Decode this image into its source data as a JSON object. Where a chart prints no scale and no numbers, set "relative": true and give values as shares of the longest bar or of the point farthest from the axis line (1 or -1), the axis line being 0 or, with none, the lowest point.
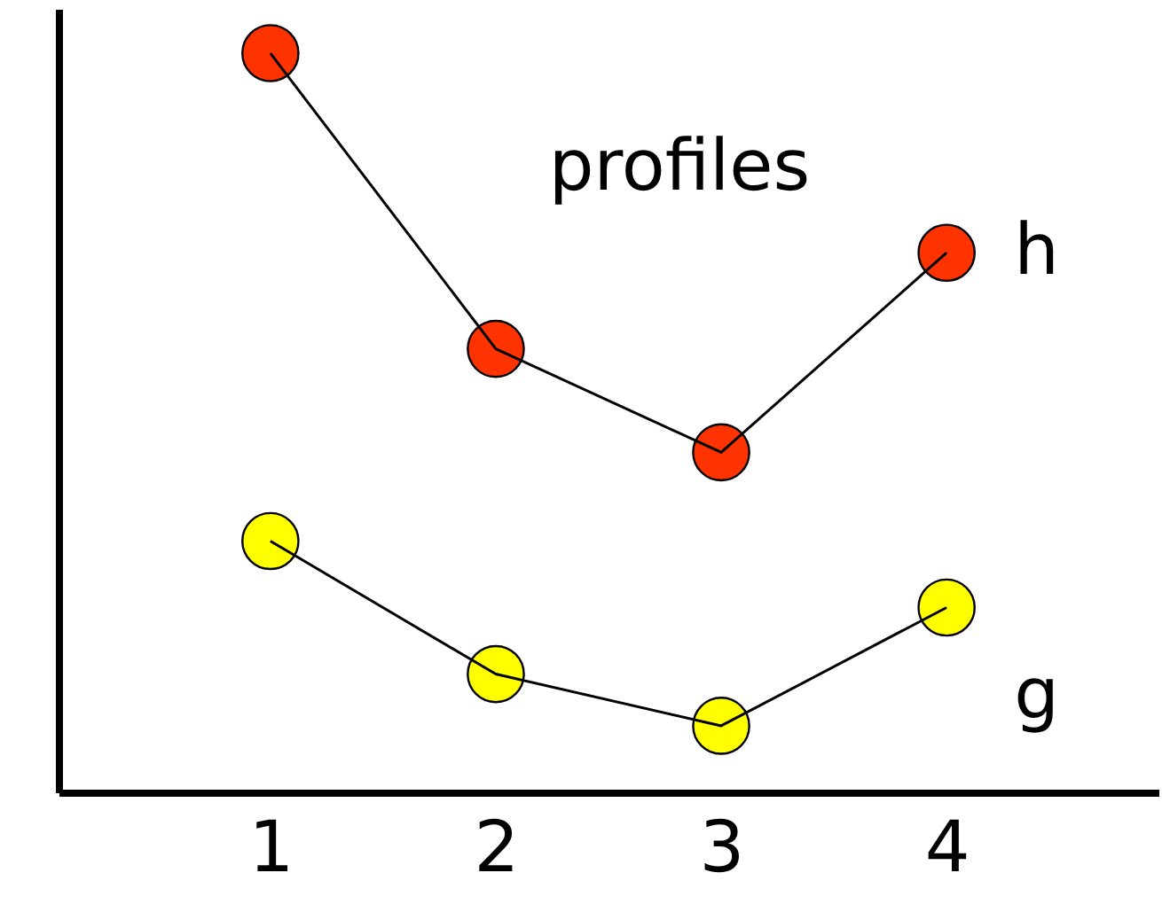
{
  "chart_data": {
    "type": "line",
    "title": "profiles",
    "categories": [
      "1",
      "2",
      "3",
      "4"
    ],
    "relative": true,
    "marker": "circle",
    "line_style": "solid",
    "series": [
      {
        "name": "h",
        "color": "#ff3300",
        "values": [
          1,
          0.6,
          0.46,
          0.73
        ]
      },
      {
        "name": "g",
        "color": "#ffff00",
        "values": [
          0.34,
          0.16,
          0.09,
          0.25
        ]
      }
    ]
  }
}
